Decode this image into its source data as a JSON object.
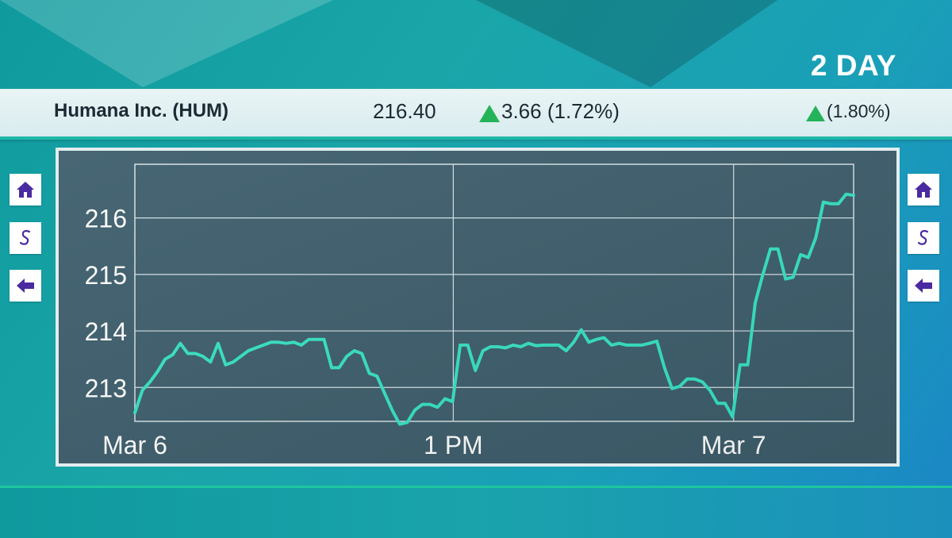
{
  "header": {
    "period": "2 DAY"
  },
  "ticker": {
    "company": "Humana Inc. (HUM)",
    "price": "216.40",
    "change": "3.66 (1.72%)",
    "change_secondary": "(1.80%)"
  },
  "nav": {
    "left": [
      "home-icon",
      "dollar-icon",
      "back-arrow-icon"
    ],
    "right": [
      "home-icon",
      "dollar-icon",
      "back-arrow-icon"
    ]
  },
  "colors": {
    "line": "#37e2c4",
    "up": "#25b35a",
    "chart_bg": "#3e5e6c",
    "grid": "#d6e2e6",
    "button_icon": "#4a2aa0"
  },
  "chart_data": {
    "type": "line",
    "title": "",
    "xlabel": "",
    "ylabel": "",
    "x_tick_labels": [
      "Mar 6",
      "1 PM",
      "Mar 7"
    ],
    "y_tick_labels": [
      "216",
      "215",
      "214",
      "213"
    ],
    "ylim": [
      212.4,
      216.95
    ],
    "grid": true,
    "series": [
      {
        "values": [
          212.55,
          212.95,
          213.1,
          213.28,
          213.5,
          213.58,
          213.78,
          213.6,
          213.6,
          213.55,
          213.45,
          213.78,
          213.4,
          213.45,
          213.55,
          213.65,
          213.7,
          213.75,
          213.8,
          213.8,
          213.78,
          213.8,
          213.75,
          213.85,
          213.85,
          213.85,
          213.35,
          213.35,
          213.55,
          213.65,
          213.6,
          213.25,
          213.2,
          212.9,
          212.6,
          212.35,
          212.38,
          212.6,
          212.7,
          212.7,
          212.65,
          212.8,
          212.75,
          213.75,
          213.75,
          213.3,
          213.65,
          213.72,
          213.72,
          213.7,
          213.75,
          213.72,
          213.78,
          213.74,
          213.75,
          213.75,
          213.75,
          213.65,
          213.8,
          214.02,
          213.8,
          213.85,
          213.88,
          213.75,
          213.78,
          213.75,
          213.75,
          213.75,
          213.78,
          213.82,
          213.35,
          212.98,
          213.02,
          213.15,
          213.15,
          213.1,
          212.95,
          212.72,
          212.72,
          212.48,
          213.4,
          213.4,
          214.5,
          215.0,
          215.45,
          215.45,
          214.92,
          214.95,
          215.35,
          215.3,
          215.65,
          216.28,
          216.25,
          216.25,
          216.42,
          216.4
        ]
      }
    ]
  }
}
